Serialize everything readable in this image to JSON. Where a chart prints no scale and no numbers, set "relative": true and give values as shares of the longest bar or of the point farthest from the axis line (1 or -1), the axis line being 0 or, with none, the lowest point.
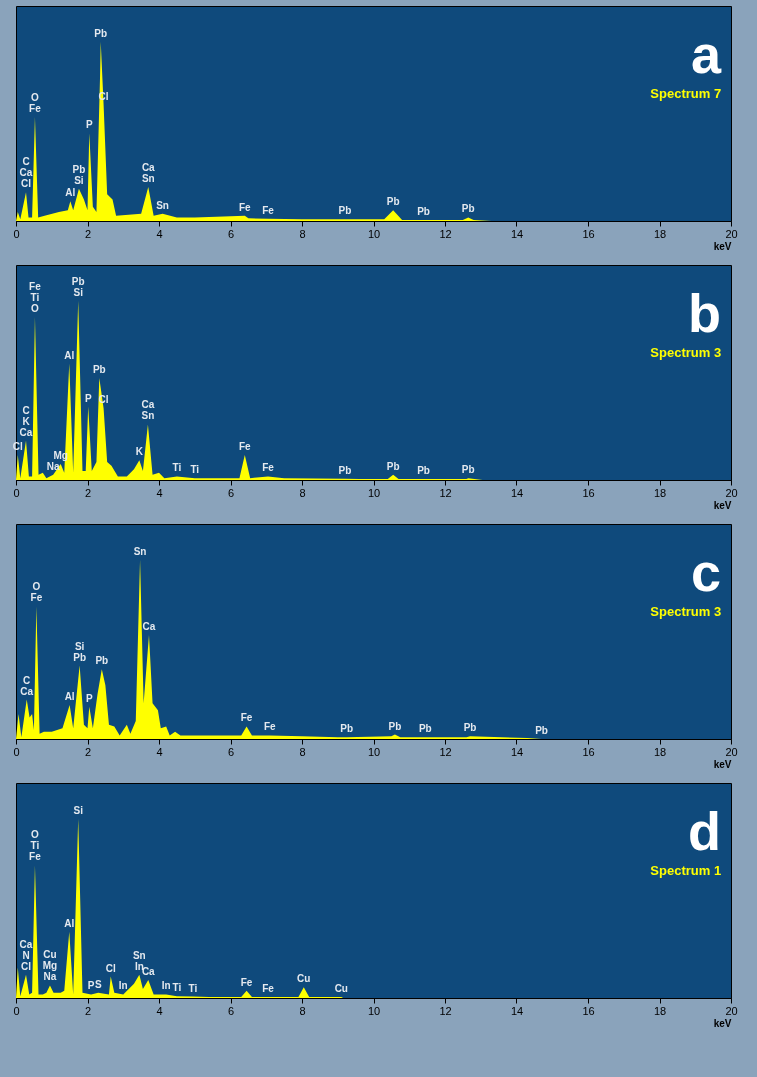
{
  "chart_data": [
    {
      "type": "area",
      "title": "a",
      "subtitle": "Spectrum 7",
      "xlabel": "keV",
      "relative": true,
      "color": "#ffff00",
      "grid": false,
      "xlim": [
        0,
        20
      ],
      "xticks": [
        0,
        2,
        4,
        6,
        8,
        10,
        12,
        14,
        16,
        18,
        20
      ],
      "x": [
        0,
        0.05,
        0.12,
        0.28,
        0.35,
        0.45,
        0.53,
        0.62,
        0.8,
        1.2,
        1.45,
        1.52,
        1.6,
        1.76,
        1.9,
        2.0,
        2.05,
        2.15,
        2.25,
        2.35,
        2.37,
        2.45,
        2.55,
        2.7,
        2.8,
        3.5,
        3.7,
        3.85,
        4.1,
        4.5,
        5.0,
        6.4,
        6.5,
        7.05,
        8.0,
        9.2,
        10.3,
        10.55,
        10.8,
        11.4,
        12.5,
        12.65,
        12.8,
        13.3
      ],
      "values": [
        0,
        0.05,
        0.01,
        0.16,
        0.02,
        0.02,
        0.58,
        0.02,
        0.03,
        0.05,
        0.06,
        0.11,
        0.06,
        0.18,
        0.12,
        0.06,
        0.49,
        0.08,
        0.05,
        0.8,
        1,
        0.65,
        0.15,
        0.12,
        0.03,
        0.04,
        0.19,
        0.03,
        0.04,
        0.02,
        0.02,
        0.03,
        0.015,
        0.012,
        0.01,
        0.01,
        0.01,
        0.06,
        0.005,
        0.005,
        0.005,
        0.02,
        0.005,
        0
      ],
      "annotations": [
        {
          "text": "Cl",
          "x": 0.28,
          "y": 0.16
        },
        {
          "text": "Ca",
          "x": 0.28,
          "y": 0.16
        },
        {
          "text": "C",
          "x": 0.28,
          "y": 0.16
        },
        {
          "text": "Fe",
          "x": 0.53,
          "y": 0.58
        },
        {
          "text": "O",
          "x": 0.53,
          "y": 0.58
        },
        {
          "text": "Al",
          "x": 1.52,
          "y": 0.11
        },
        {
          "text": "Si",
          "x": 1.76,
          "y": 0.18
        },
        {
          "text": "Pb",
          "x": 1.76,
          "y": 0.18
        },
        {
          "text": "P",
          "x": 2.05,
          "y": 0.49
        },
        {
          "text": "Pb",
          "x": 2.37,
          "y": 1
        },
        {
          "text": "Cl",
          "x": 2.45,
          "y": 0.65
        },
        {
          "text": "Sn",
          "x": 3.7,
          "y": 0.19
        },
        {
          "text": "Ca",
          "x": 3.7,
          "y": 0.19
        },
        {
          "text": "Sn",
          "x": 4.1,
          "y": 0.04
        },
        {
          "text": "Fe",
          "x": 6.4,
          "y": 0.03
        },
        {
          "text": "Fe",
          "x": 7.05,
          "y": 0.012
        },
        {
          "text": "Pb",
          "x": 9.2,
          "y": 0.01
        },
        {
          "text": "Pb",
          "x": 10.55,
          "y": 0.06
        },
        {
          "text": "Pb",
          "x": 11.4,
          "y": 0.005
        },
        {
          "text": "Pb",
          "x": 12.65,
          "y": 0.02
        }
      ]
    },
    {
      "type": "area",
      "title": "b",
      "subtitle": "Spectrum 3",
      "xlabel": "keV",
      "relative": true,
      "color": "#ffff00",
      "grid": false,
      "xlim": [
        0,
        20
      ],
      "xticks": [
        0,
        2,
        4,
        6,
        8,
        10,
        12,
        14,
        16,
        18,
        20
      ],
      "x": [
        0,
        0.05,
        0.12,
        0.28,
        0.36,
        0.45,
        0.53,
        0.63,
        0.75,
        0.85,
        1.04,
        1.25,
        1.35,
        1.49,
        1.6,
        1.74,
        1.86,
        1.95,
        2.02,
        2.12,
        2.25,
        2.33,
        2.45,
        2.55,
        2.67,
        2.85,
        3.1,
        3.3,
        3.45,
        3.55,
        3.69,
        3.82,
        4.0,
        4.15,
        4.5,
        5.0,
        6.25,
        6.4,
        6.55,
        7.05,
        7.5,
        9.2,
        9.6,
        10.4,
        10.55,
        10.7,
        11.4,
        12.6,
        12.65,
        13.05
      ],
      "values": [
        0,
        0.14,
        0.01,
        0.22,
        0.02,
        0.02,
        0.91,
        0.03,
        0.04,
        0.01,
        0.03,
        0.09,
        0.04,
        0.65,
        0.04,
        1,
        0.05,
        0.05,
        0.41,
        0.05,
        0.1,
        0.57,
        0.4,
        0.1,
        0.08,
        0.02,
        0.02,
        0.06,
        0.11,
        0.05,
        0.31,
        0.03,
        0.04,
        0.01,
        0.02,
        0.01,
        0.01,
        0.14,
        0.01,
        0.02,
        0.01,
        0.007,
        0.005,
        0.005,
        0.03,
        0.005,
        0.005,
        0.005,
        0.01,
        0
      ],
      "annotations": [
        {
          "text": "Cl",
          "x": 0.05,
          "y": 0.14
        },
        {
          "text": "Ca",
          "x": 0.28,
          "y": 0.22
        },
        {
          "text": "K",
          "x": 0.28,
          "y": 0.22
        },
        {
          "text": "C",
          "x": 0.28,
          "y": 0.22
        },
        {
          "text": "O",
          "x": 0.53,
          "y": 0.91
        },
        {
          "text": "Ti",
          "x": 0.53,
          "y": 0.91
        },
        {
          "text": "Fe",
          "x": 0.53,
          "y": 0.91
        },
        {
          "text": "Na",
          "x": 1.04,
          "y": 0.03
        },
        {
          "text": "Mg",
          "x": 1.25,
          "y": 0.09
        },
        {
          "text": "Al",
          "x": 1.49,
          "y": 0.65
        },
        {
          "text": "Si",
          "x": 1.74,
          "y": 1
        },
        {
          "text": "Pb",
          "x": 1.74,
          "y": 1
        },
        {
          "text": "P",
          "x": 2.02,
          "y": 0.41
        },
        {
          "text": "Pb",
          "x": 2.33,
          "y": 0.57
        },
        {
          "text": "Cl",
          "x": 2.45,
          "y": 0.4
        },
        {
          "text": "K",
          "x": 3.45,
          "y": 0.11
        },
        {
          "text": "Sn",
          "x": 3.69,
          "y": 0.31
        },
        {
          "text": "Ca",
          "x": 3.69,
          "y": 0.31
        },
        {
          "text": "Ti",
          "x": 4.5,
          "y": 0.02
        },
        {
          "text": "Ti",
          "x": 5.0,
          "y": 0.01
        },
        {
          "text": "Fe",
          "x": 6.4,
          "y": 0.14
        },
        {
          "text": "Fe",
          "x": 7.05,
          "y": 0.02
        },
        {
          "text": "Pb",
          "x": 9.2,
          "y": 0.007
        },
        {
          "text": "Pb",
          "x": 10.55,
          "y": 0.03
        },
        {
          "text": "Pb",
          "x": 11.4,
          "y": 0.005
        },
        {
          "text": "Pb",
          "x": 12.65,
          "y": 0.01
        }
      ]
    },
    {
      "type": "area",
      "title": "c",
      "subtitle": "Spectrum 3",
      "xlabel": "keV",
      "relative": true,
      "color": "#ffff00",
      "grid": false,
      "xlim": [
        0,
        20
      ],
      "xticks": [
        0,
        2,
        4,
        6,
        8,
        10,
        12,
        14,
        16,
        18,
        20
      ],
      "x": [
        0,
        0.07,
        0.15,
        0.3,
        0.38,
        0.45,
        0.5,
        0.57,
        0.66,
        0.78,
        1.0,
        1.3,
        1.5,
        1.6,
        1.78,
        1.9,
        2.0,
        2.05,
        2.15,
        2.28,
        2.4,
        2.5,
        2.6,
        2.75,
        2.9,
        3.1,
        3.2,
        3.35,
        3.47,
        3.57,
        3.72,
        3.82,
        3.97,
        4.05,
        4.2,
        4.3,
        4.45,
        4.6,
        5.0,
        6.3,
        6.45,
        6.6,
        7.1,
        8.0,
        9.0,
        9.25,
        10.5,
        10.6,
        10.75,
        11.45,
        12.6,
        12.7,
        14.3,
        14.7
      ],
      "values": [
        0,
        0.14,
        0.01,
        0.22,
        0.12,
        0.14,
        0.05,
        0.74,
        0.03,
        0.04,
        0.04,
        0.06,
        0.19,
        0.06,
        0.41,
        0.08,
        0.06,
        0.18,
        0.06,
        0.25,
        0.39,
        0.3,
        0.08,
        0.07,
        0.02,
        0.08,
        0.03,
        0.1,
        1,
        0.2,
        0.58,
        0.2,
        0.16,
        0.06,
        0.07,
        0.02,
        0.04,
        0.02,
        0.02,
        0.02,
        0.07,
        0.02,
        0.02,
        0.015,
        0.01,
        0.01,
        0.015,
        0.025,
        0.01,
        0.01,
        0.01,
        0.015,
        0.005,
        0
      ],
      "annotations": [
        {
          "text": "Sn",
          "x": 3.47,
          "y": 1
        },
        {
          "text": "Fe",
          "x": 0.57,
          "y": 0.74
        },
        {
          "text": "O",
          "x": 0.57,
          "y": 0.74
        },
        {
          "text": "Ca",
          "x": 3.72,
          "y": 0.58
        },
        {
          "text": "Pb",
          "x": 1.78,
          "y": 0.41
        },
        {
          "text": "Si",
          "x": 1.78,
          "y": 0.41
        },
        {
          "text": "Pb",
          "x": 2.4,
          "y": 0.39
        },
        {
          "text": "Ca",
          "x": 0.3,
          "y": 0.22
        },
        {
          "text": "C",
          "x": 0.3,
          "y": 0.22
        },
        {
          "text": "Al",
          "x": 1.5,
          "y": 0.19
        },
        {
          "text": "P",
          "x": 2.05,
          "y": 0.18
        },
        {
          "text": "Fe",
          "x": 6.45,
          "y": 0.07
        },
        {
          "text": "Fe",
          "x": 7.1,
          "y": 0.02
        },
        {
          "text": "Pb",
          "x": 9.25,
          "y": 0.01
        },
        {
          "text": "Pb",
          "x": 10.6,
          "y": 0.025
        },
        {
          "text": "Pb",
          "x": 11.45,
          "y": 0.01
        },
        {
          "text": "Pb",
          "x": 12.7,
          "y": 0.015
        },
        {
          "text": "Pb",
          "x": 14.7,
          "y": 0
        }
      ]
    },
    {
      "type": "area",
      "title": "d",
      "subtitle": "Spectrum 1",
      "xlabel": "keV",
      "relative": true,
      "color": "#ffff00",
      "grid": false,
      "xlim": [
        0,
        20
      ],
      "xticks": [
        0,
        2,
        4,
        6,
        8,
        10,
        12,
        14,
        16,
        18,
        20
      ],
      "x": [
        0,
        0.05,
        0.12,
        0.28,
        0.37,
        0.45,
        0.53,
        0.63,
        0.75,
        0.85,
        0.95,
        1.05,
        1.25,
        1.35,
        1.49,
        1.6,
        1.74,
        1.86,
        2.1,
        2.3,
        2.6,
        2.65,
        2.75,
        3.0,
        3.3,
        3.45,
        3.55,
        3.7,
        3.85,
        4.2,
        4.5,
        4.95,
        5.4,
        6.3,
        6.45,
        6.6,
        7.05,
        7.9,
        8.05,
        8.2,
        9.1,
        9.15
      ],
      "values": [
        0,
        0.17,
        0.01,
        0.13,
        0.02,
        0.03,
        0.74,
        0.02,
        0.02,
        0.03,
        0.07,
        0.03,
        0.03,
        0.04,
        0.37,
        0.02,
        1,
        0.03,
        0.02,
        0.03,
        0.02,
        0.12,
        0.03,
        0.02,
        0.08,
        0.13,
        0.05,
        0.1,
        0.02,
        0.02,
        0.01,
        0.008,
        0.005,
        0.005,
        0.04,
        0.005,
        0.005,
        0.005,
        0.06,
        0.005,
        0.005,
        0
      ],
      "annotations": [
        {
          "text": "Si",
          "x": 1.74,
          "y": 1
        },
        {
          "text": "Fe",
          "x": 0.53,
          "y": 0.74
        },
        {
          "text": "Ti",
          "x": 0.53,
          "y": 0.74
        },
        {
          "text": "O",
          "x": 0.53,
          "y": 0.74
        },
        {
          "text": "Al",
          "x": 1.49,
          "y": 0.37
        },
        {
          "text": "Cl",
          "x": 0.28,
          "y": 0.13
        },
        {
          "text": "N",
          "x": 0.28,
          "y": 0.13
        },
        {
          "text": "Ca",
          "x": 0.28,
          "y": 0.13
        },
        {
          "text": "Na",
          "x": 0.95,
          "y": 0.07
        },
        {
          "text": "Mg",
          "x": 0.95,
          "y": 0.07
        },
        {
          "text": "Cu",
          "x": 0.95,
          "y": 0.07
        },
        {
          "text": "P",
          "x": 2.1,
          "y": 0.02
        },
        {
          "text": "S",
          "x": 2.3,
          "y": 0.03
        },
        {
          "text": "Cl",
          "x": 2.65,
          "y": 0.12
        },
        {
          "text": "In",
          "x": 3.0,
          "y": 0.02
        },
        {
          "text": "In",
          "x": 3.45,
          "y": 0.13
        },
        {
          "text": "Sn",
          "x": 3.45,
          "y": 0.13
        },
        {
          "text": "Ca",
          "x": 3.7,
          "y": 0.1
        },
        {
          "text": "In",
          "x": 4.2,
          "y": 0.02
        },
        {
          "text": "Ti",
          "x": 4.5,
          "y": 0.01
        },
        {
          "text": "Ti",
          "x": 4.95,
          "y": 0.008
        },
        {
          "text": "Fe",
          "x": 6.45,
          "y": 0.04
        },
        {
          "text": "Fe",
          "x": 7.05,
          "y": 0.005
        },
        {
          "text": "Cu",
          "x": 8.05,
          "y": 0.06
        },
        {
          "text": "Cu",
          "x": 9.1,
          "y": 0.005
        }
      ]
    }
  ]
}
